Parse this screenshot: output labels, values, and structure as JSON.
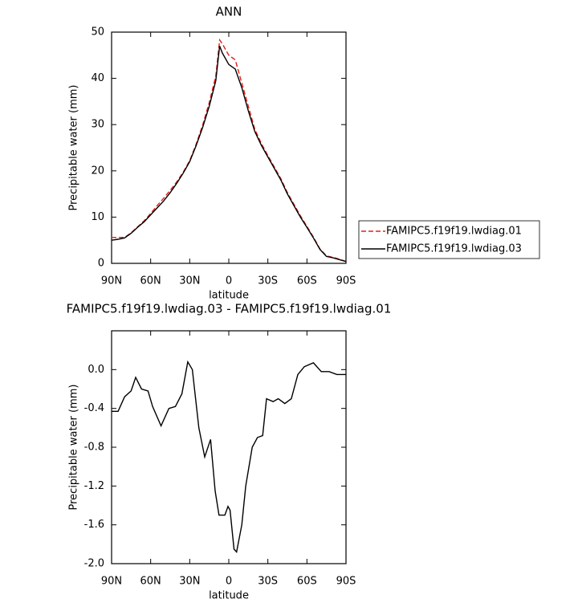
{
  "chart_data": [
    {
      "type": "line",
      "title": "ANN",
      "xlabel": "latitude",
      "ylabel": "Precipitable water (mm)",
      "xlim": [
        90,
        -90
      ],
      "xticks": [
        {
          "value": 90,
          "label": "90N"
        },
        {
          "value": 60,
          "label": "60N"
        },
        {
          "value": 30,
          "label": "30N"
        },
        0,
        {
          "value": -30,
          "label": "30S"
        },
        {
          "value": -60,
          "label": "60S"
        },
        {
          "value": -90,
          "label": "90S"
        }
      ],
      "ylim": [
        0,
        50
      ],
      "yticks": [
        0,
        10,
        20,
        30,
        40,
        50
      ],
      "x": [
        90,
        85,
        80,
        75,
        70,
        65,
        60,
        55,
        50,
        45,
        40,
        35,
        30,
        25,
        20,
        15,
        10,
        7,
        5,
        0,
        -5,
        -10,
        -15,
        -20,
        -25,
        -30,
        -35,
        -40,
        -45,
        -50,
        -55,
        -60,
        -65,
        -70,
        -75,
        -80,
        -85,
        -90
      ],
      "legend": "right",
      "series": [
        {
          "name": "FAMIPC5.f19f19.lwdiag.01",
          "color": "#e0201c",
          "dash": true,
          "values": [
            5.6,
            5.6,
            5.6,
            6.6,
            7.9,
            9.2,
            10.8,
            12.5,
            14.1,
            15.8,
            17.6,
            19.7,
            22.2,
            25.8,
            30.0,
            34.8,
            40.5,
            48.3,
            47.5,
            45.0,
            44.0,
            39.0,
            34.0,
            29.0,
            25.9,
            23.3,
            20.8,
            18.3,
            15.3,
            12.8,
            10.3,
            8.0,
            5.7,
            3.1,
            1.6,
            1.3,
            0.9,
            0.4
          ]
        },
        {
          "name": "FAMIPC5.f19f19.lwdiag.03",
          "color": "#000000",
          "dash": false,
          "values": [
            5.0,
            5.2,
            5.5,
            6.5,
            7.8,
            9.0,
            10.5,
            12.0,
            13.5,
            15.3,
            17.3,
            19.5,
            22.0,
            25.5,
            29.5,
            34.0,
            39.5,
            47.0,
            45.5,
            43.0,
            42.0,
            38.0,
            33.0,
            28.5,
            25.5,
            23.0,
            20.5,
            18.0,
            15.0,
            12.5,
            10.0,
            7.8,
            5.5,
            3.0,
            1.5,
            1.2,
            0.8,
            0.4
          ]
        }
      ]
    },
    {
      "type": "line",
      "title": "FAMIPC5.f19f19.lwdiag.03 - FAMIPC5.f19f19.lwdiag.01",
      "xlabel": "latitude",
      "ylabel": "Precipitable water (mm)",
      "xlim": [
        90,
        -90
      ],
      "xticks": [
        {
          "value": 90,
          "label": "90N"
        },
        {
          "value": 60,
          "label": "60N"
        },
        {
          "value": 30,
          "label": "30N"
        },
        0,
        {
          "value": -30,
          "label": "30S"
        },
        {
          "value": -60,
          "label": "60S"
        },
        {
          "value": -90,
          "label": "90S"
        }
      ],
      "ylim": [
        -2.0,
        0.4
      ],
      "yticks": [
        {
          "value": -2.0,
          "label": "-2.0"
        },
        {
          "value": -1.6,
          "label": "-1.6"
        },
        {
          "value": -1.2,
          "label": "-1.2"
        },
        {
          "value": -0.8,
          "label": "-0.8"
        },
        {
          "value": -0.4,
          "label": "-0.4"
        },
        {
          "value": 0.0,
          "label": "0.0"
        }
      ],
      "x": [
        90,
        85,
        80,
        75,
        71.5,
        67,
        62,
        58.5,
        52,
        46,
        41,
        36,
        31.5,
        28,
        23,
        18.5,
        14,
        10.5,
        7.5,
        3,
        0.6,
        -1,
        -4,
        -6,
        -10,
        -13,
        -18,
        -22,
        -26,
        -29,
        -34,
        -38,
        -43,
        -48,
        -53,
        -58,
        -65,
        -71,
        -77,
        -83,
        -90
      ],
      "series": [
        {
          "name": "FAMIPC5.f19f19.lwdiag.03 - FAMIPC5.f19f19.lwdiag.01",
          "color": "#000000",
          "dash": false,
          "values": [
            -0.43,
            -0.43,
            -0.28,
            -0.22,
            -0.08,
            -0.2,
            -0.22,
            -0.38,
            -0.58,
            -0.4,
            -0.38,
            -0.25,
            0.08,
            0.0,
            -0.6,
            -0.9,
            -0.72,
            -1.25,
            -1.5,
            -1.5,
            -1.41,
            -1.45,
            -1.85,
            -1.88,
            -1.6,
            -1.2,
            -0.8,
            -0.7,
            -0.68,
            -0.3,
            -0.33,
            -0.3,
            -0.35,
            -0.3,
            -0.05,
            0.03,
            0.07,
            -0.02,
            -0.02,
            -0.05,
            -0.05
          ]
        }
      ]
    }
  ]
}
